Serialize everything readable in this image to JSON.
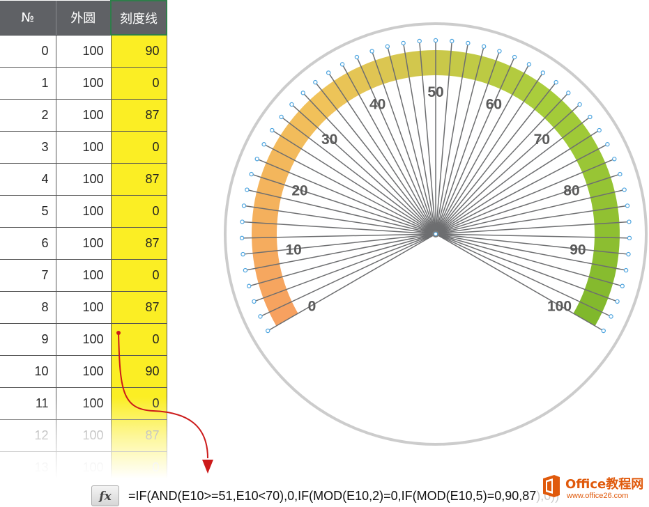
{
  "sheet": {
    "headers": [
      "№",
      "外圆",
      "刻度线"
    ],
    "rows": [
      [
        "0",
        "100",
        "90"
      ],
      [
        "1",
        "100",
        "0"
      ],
      [
        "2",
        "100",
        "87"
      ],
      [
        "3",
        "100",
        "0"
      ],
      [
        "4",
        "100",
        "87"
      ],
      [
        "5",
        "100",
        "0"
      ],
      [
        "6",
        "100",
        "87"
      ],
      [
        "7",
        "100",
        "0"
      ],
      [
        "8",
        "100",
        "87"
      ],
      [
        "9",
        "100",
        "0"
      ],
      [
        "10",
        "100",
        "90"
      ],
      [
        "11",
        "100",
        "0"
      ],
      [
        "12",
        "100",
        "87"
      ],
      [
        "13",
        "100",
        "0"
      ]
    ],
    "highlight_color": "#fbee24",
    "header_bg": "#5f6165"
  },
  "formula_bar": {
    "fx_label": "fx",
    "formula": "=IF(AND(E10>=51,E10<70),0,IF(MOD(E10,2)=0,IF(MOD(E10,5)=0,90,87),0))"
  },
  "gauge": {
    "scale_labels": [
      "0",
      "10",
      "20",
      "30",
      "40",
      "50",
      "60",
      "70",
      "80",
      "90",
      "100"
    ],
    "min": 0,
    "max": 100,
    "tick_count": 50,
    "arc_colors": [
      "#f7a060",
      "#f1c35a",
      "#a6cd3a",
      "#7fb72c"
    ],
    "ring_color": "#cccccc",
    "marker_color": "#4aa3df"
  },
  "watermark": {
    "title": "Office教程网",
    "url": "www.office26.com",
    "color": "#e05a0c"
  }
}
